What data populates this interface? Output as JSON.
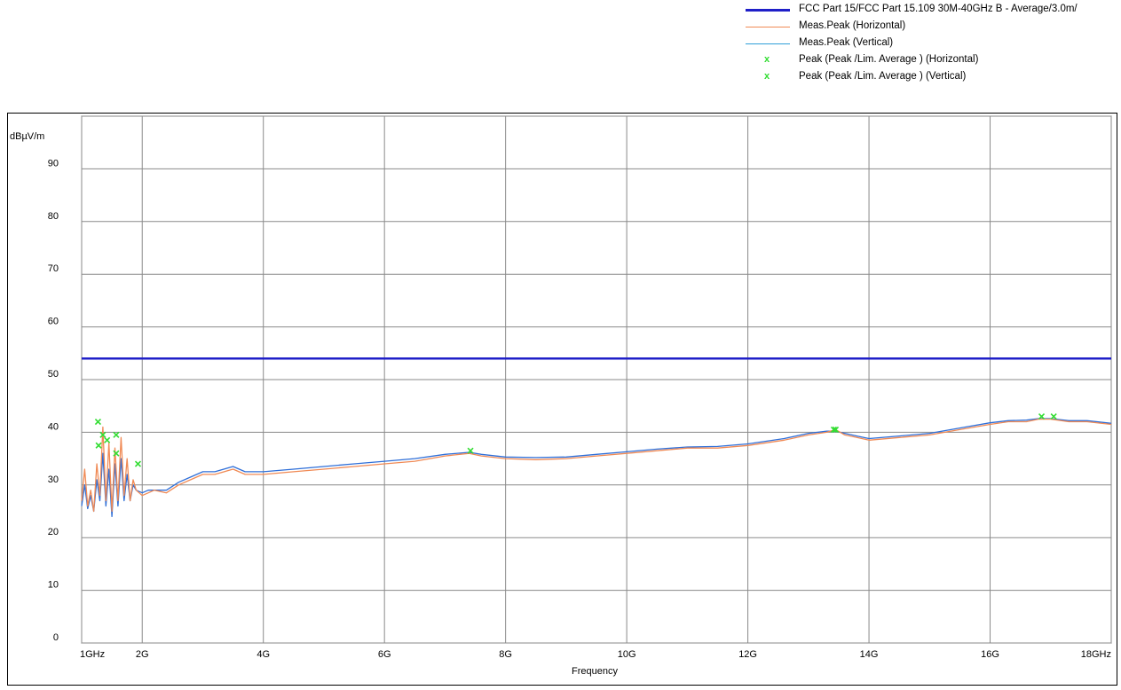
{
  "chart_data": {
    "type": "line",
    "xlabel": "Frequency",
    "ylabel": "dBµV/m",
    "xlim": [
      1,
      18
    ],
    "ylim": [
      0,
      100
    ],
    "grid": true,
    "legend_position": "top-right",
    "x_ticks": [
      {
        "value": 1,
        "label": "1GHz"
      },
      {
        "value": 2,
        "label": "2G"
      },
      {
        "value": 4,
        "label": "4G"
      },
      {
        "value": 6,
        "label": "6G"
      },
      {
        "value": 8,
        "label": "8G"
      },
      {
        "value": 10,
        "label": "10G"
      },
      {
        "value": 12,
        "label": "12G"
      },
      {
        "value": 14,
        "label": "14G"
      },
      {
        "value": 16,
        "label": "16G"
      },
      {
        "value": 18,
        "label": "18GHz"
      }
    ],
    "y_ticks": [
      0,
      10,
      20,
      30,
      40,
      50,
      60,
      70,
      80,
      90,
      100
    ],
    "limit_line": {
      "name": "FCC Part 15/FCC Part 15.109 30M-40GHz B - Average/3.0m/",
      "value": 54,
      "color": "#1f1fc8"
    },
    "series": [
      {
        "name": "Meas.Peak (Horizontal)",
        "color": "#f08a55",
        "x": [
          1.0,
          1.05,
          1.1,
          1.15,
          1.2,
          1.25,
          1.3,
          1.35,
          1.4,
          1.45,
          1.5,
          1.55,
          1.6,
          1.65,
          1.7,
          1.75,
          1.8,
          1.85,
          1.9,
          2.0,
          2.1,
          2.2,
          2.4,
          2.6,
          2.8,
          3.0,
          3.2,
          3.5,
          3.7,
          4.0,
          4.5,
          5.0,
          5.5,
          6.0,
          6.5,
          7.0,
          7.4,
          7.6,
          8.0,
          8.5,
          9.0,
          9.5,
          10.0,
          10.5,
          11.0,
          11.5,
          12.0,
          12.3,
          12.6,
          13.0,
          13.3,
          13.45,
          13.6,
          13.8,
          14.0,
          14.5,
          15.0,
          15.5,
          16.0,
          16.3,
          16.6,
          16.8,
          17.0,
          17.3,
          17.6,
          18.0
        ],
        "y": [
          27,
          33,
          26,
          29,
          25,
          34,
          28,
          41,
          27,
          38,
          25,
          37,
          27,
          39,
          28,
          35,
          27,
          31,
          29,
          28,
          28.5,
          29,
          28.5,
          30,
          31,
          32,
          32,
          33,
          32,
          32,
          32.5,
          33,
          33.5,
          34,
          34.5,
          35.5,
          36,
          35.5,
          35,
          34.8,
          35,
          35.5,
          36,
          36.5,
          37,
          37,
          37.5,
          38,
          38.5,
          39.5,
          40,
          40.5,
          39.5,
          39,
          38.5,
          39,
          39.5,
          40.5,
          41.5,
          42,
          42,
          42.5,
          42.5,
          42,
          42,
          41.5
        ]
      },
      {
        "name": "Meas.Peak (Vertical)",
        "color": "#2f6fd8",
        "x": [
          1.0,
          1.05,
          1.1,
          1.15,
          1.2,
          1.25,
          1.3,
          1.35,
          1.4,
          1.45,
          1.5,
          1.55,
          1.6,
          1.65,
          1.7,
          1.75,
          1.8,
          1.85,
          1.9,
          2.0,
          2.1,
          2.2,
          2.4,
          2.6,
          2.8,
          3.0,
          3.2,
          3.5,
          3.7,
          4.0,
          4.5,
          5.0,
          5.5,
          6.0,
          6.5,
          7.0,
          7.4,
          7.6,
          8.0,
          8.5,
          9.0,
          9.5,
          10.0,
          10.5,
          11.0,
          11.5,
          12.0,
          12.3,
          12.6,
          13.0,
          13.3,
          13.45,
          13.6,
          13.8,
          14.0,
          14.5,
          15.0,
          15.5,
          16.0,
          16.3,
          16.6,
          16.8,
          17.0,
          17.3,
          17.6,
          18.0
        ],
        "y": [
          26,
          30,
          25.5,
          28,
          25,
          31,
          27,
          36,
          26,
          33,
          24,
          34,
          26,
          35,
          27,
          32,
          27,
          30,
          29,
          28.5,
          29,
          29,
          29,
          30.5,
          31.5,
          32.5,
          32.5,
          33.5,
          32.5,
          32.5,
          33,
          33.5,
          34,
          34.5,
          35,
          35.8,
          36.2,
          35.8,
          35.3,
          35.2,
          35.3,
          35.8,
          36.3,
          36.8,
          37.2,
          37.3,
          37.8,
          38.3,
          38.8,
          39.8,
          40.2,
          40.2,
          39.8,
          39.3,
          38.8,
          39.3,
          39.8,
          40.8,
          41.8,
          42.2,
          42.3,
          42.6,
          42.6,
          42.2,
          42.2,
          41.7
        ]
      }
    ],
    "peaks": [
      {
        "name": "Peak  (Peak /Lim. Average ) (Horizontal)",
        "color": "#33dd33",
        "x": [
          1.28,
          1.35,
          1.42,
          1.57,
          1.93,
          7.42,
          13.42,
          16.85
        ],
        "y": [
          37.5,
          39.5,
          38.5,
          39.5,
          34,
          36.5,
          40.5,
          43
        ]
      },
      {
        "name": "Peak  (Peak /Lim. Average ) (Vertical)",
        "color": "#33dd33",
        "x": [
          1.27,
          1.57,
          13.45,
          17.05
        ],
        "y": [
          42,
          36,
          40.5,
          43
        ]
      }
    ]
  },
  "legend": {
    "limit_label": "FCC Part 15/FCC Part 15.109 30M-40GHz B - Average/3.0m/",
    "horizontal_label": "Meas.Peak (Horizontal)",
    "vertical_label": "Meas.Peak (Vertical)",
    "peak_h_label": "Peak  (Peak /Lim. Average ) (Horizontal)",
    "peak_v_label": "Peak  (Peak /Lim. Average ) (Vertical)",
    "peak_marker": "x"
  }
}
